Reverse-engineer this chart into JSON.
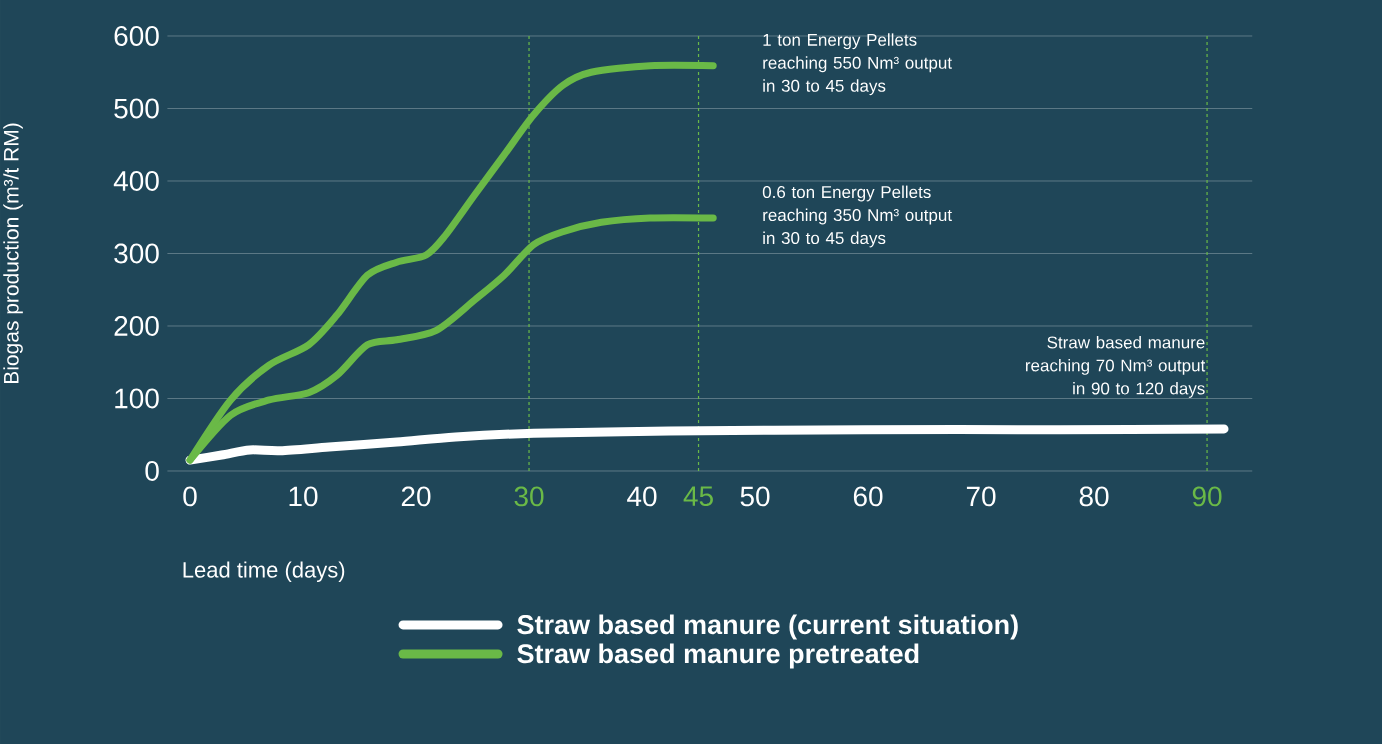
{
  "chart_data": {
    "type": "line",
    "ylabel": "Biogas production (m³/t RM)",
    "xlabel": "Lead time (days)",
    "xlim": [
      -2,
      94
    ],
    "ylim": [
      0,
      600
    ],
    "xticks": [
      0,
      10,
      20,
      30,
      40,
      45,
      50,
      60,
      70,
      80,
      90
    ],
    "yticks": [
      0,
      100,
      200,
      300,
      400,
      500,
      600
    ],
    "grid": "y",
    "legend": "bottom",
    "line_style": "solid",
    "marker": "none",
    "series": [
      {
        "name": "Straw based manure (current situation)",
        "color": "#ffffff",
        "x": [
          0,
          2.8,
          5.3,
          8,
          12.3,
          18.3,
          23.5,
          30.4,
          42.4,
          59.7,
          77,
          91.5
        ],
        "values": [
          15,
          22,
          29,
          28,
          33,
          40,
          47,
          52,
          55,
          57,
          57,
          58
        ]
      },
      {
        "name": "Straw based manure pretreated",
        "color": "#6ab947",
        "x": [
          0,
          3.6,
          7,
          10.5,
          13,
          15.7,
          18.3,
          20.9,
          22.6,
          25.2,
          27.8,
          30.4,
          33,
          35.5,
          40.7,
          46.3
        ],
        "values": [
          15,
          98,
          146,
          174,
          215,
          270,
          288,
          298,
          325,
          381,
          436,
          491,
          532,
          550,
          559,
          559
        ]
      },
      {
        "color": "#6ab947",
        "x": [
          0,
          3.6,
          7,
          10.5,
          13,
          15.7,
          18.3,
          21.8,
          25.2,
          27.8,
          30.4,
          33,
          36.4,
          40.7,
          46.3
        ],
        "values": [
          15,
          77,
          98,
          108,
          132,
          174,
          181,
          194,
          236,
          270,
          312,
          330,
          343,
          349,
          349
        ]
      }
    ],
    "ref_lines": [
      {
        "axis": "x",
        "value": 30,
        "color": "#6ab947",
        "line_style": "dashed"
      },
      {
        "axis": "x",
        "value": 45,
        "color": "#6ab947",
        "line_style": "dashed"
      },
      {
        "axis": "x",
        "value": 90,
        "color": "#6ab947",
        "line_style": "dashed"
      }
    ],
    "annotations": [
      "1 ton Energy Pellets reaching 550 Nm³ output in 30 to 45 days",
      "0.6 ton Energy Pellets reaching 350 Nm³ output in 30 to 45 days",
      "Straw based manure reaching 70 Nm³ output in 90 to 120 days"
    ]
  }
}
